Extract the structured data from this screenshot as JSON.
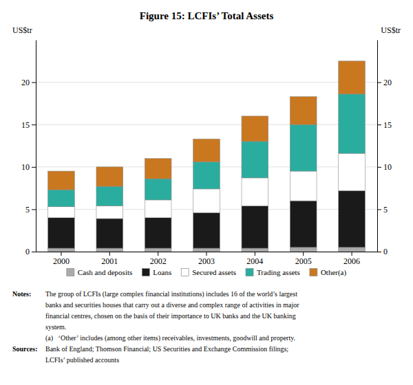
{
  "chart_data": {
    "type": "bar",
    "stacked": true,
    "title": "Figure 15: LCFIs’ Total Assets",
    "ylabel": "US$tr",
    "y2label": "US$tr",
    "categories": [
      "2000",
      "2001",
      "2002",
      "2003",
      "2004",
      "2005",
      "2006"
    ],
    "series": [
      {
        "name": "Cash and deposits",
        "color": "#aaaaaa",
        "values": [
          0.4,
          0.4,
          0.4,
          0.4,
          0.4,
          0.5,
          0.5
        ]
      },
      {
        "name": "Loans",
        "color": "#1a1a1a",
        "values": [
          3.6,
          3.5,
          3.6,
          4.2,
          5.0,
          5.5,
          6.7
        ]
      },
      {
        "name": "Secured assets",
        "color": "#ffffff",
        "values": [
          1.3,
          1.5,
          2.1,
          2.8,
          3.3,
          3.5,
          4.4
        ]
      },
      {
        "name": "Trading assets",
        "color": "#2aad9e",
        "values": [
          2.0,
          2.3,
          2.5,
          3.2,
          4.3,
          5.5,
          7.0
        ]
      },
      {
        "name": "Other(a)",
        "color": "#c97820",
        "values": [
          2.2,
          2.3,
          2.4,
          2.7,
          3.0,
          3.3,
          3.9
        ]
      }
    ],
    "ylim": [
      0,
      25
    ],
    "yticks": [
      0,
      5,
      10,
      15,
      20
    ],
    "y2lim": [
      0,
      25
    ],
    "y2ticks": [
      0,
      5,
      10,
      15,
      20
    ],
    "grid": true,
    "legend": "bottom",
    "annotations": [
      [
        "Notes:",
        "The group of LCFIs (large complex financial institutions) includes 16 of the world’s largest"
      ],
      [
        "banks and securities houses that carry out a diverse and complex range of activities in major"
      ],
      [
        "financial centres, chosen on the basis of their importance to UK banks and the UK banking"
      ],
      [
        "system."
      ],
      [
        "(a)   ‘Other’ includes (among other items) receivables, investments, goodwill and property."
      ],
      [
        "Sources:",
        "Bank of England; Thomson Financial; US Securities and Exchange Commission filings;"
      ],
      [
        "LCFIs’ published accounts"
      ]
    ]
  }
}
